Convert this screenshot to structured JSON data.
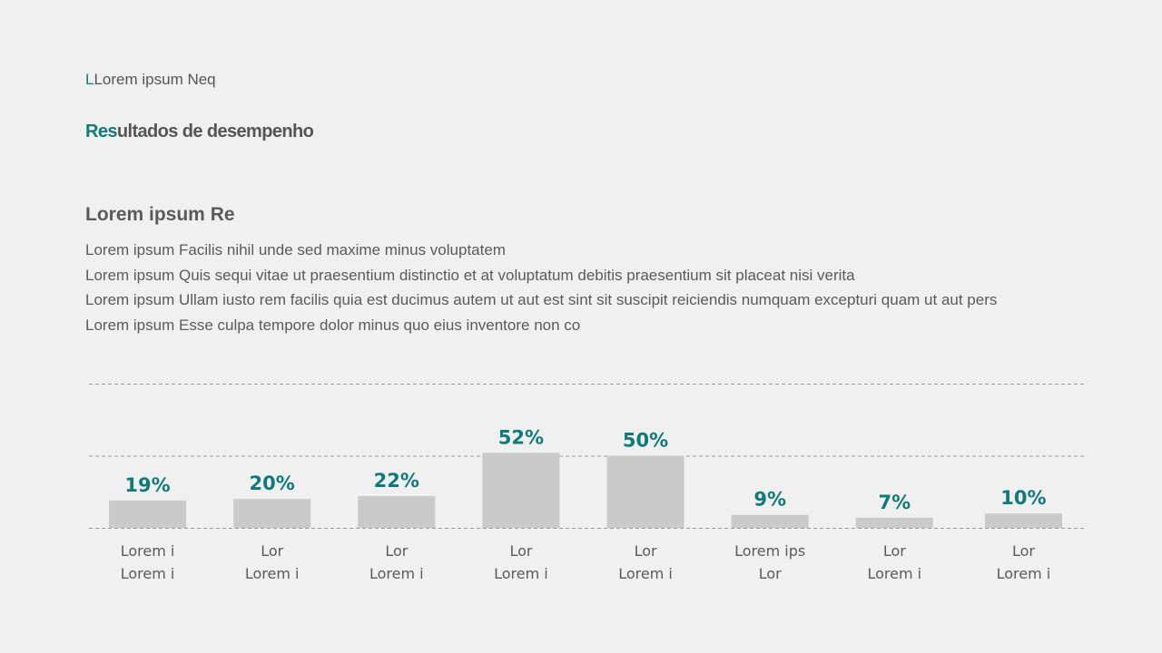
{
  "header": {
    "eyebrow_accent": "L",
    "eyebrow_rest": "Lorem ipsum Neq",
    "title_accent": "Res",
    "title_rest": "ultados de desempenho"
  },
  "content": {
    "subheading": "Lorem ipsum Re",
    "lines": [
      "Lorem ipsum Facilis nihil unde sed maxime minus voluptatem",
      "Lorem ipsum Quis sequi vitae ut praesentium distinctio et at voluptatum debitis praesentium sit placeat nisi verita",
      "Lorem ipsum Ullam iusto rem facilis quia est ducimus autem ut aut est sint sit suscipit reiciendis numquam excepturi quam ut aut pers",
      "Lorem ipsum Esse culpa tempore dolor minus quo eius inventore non co"
    ]
  },
  "colors": {
    "accent": "#0f7a7a",
    "bar": "#cacaca",
    "text": "#555555",
    "background": "#f0f0f0"
  },
  "chart_data": {
    "type": "bar",
    "categories": [
      [
        "Lorem i",
        "Lorem i"
      ],
      [
        "Lor",
        "Lorem i"
      ],
      [
        "Lor",
        "Lorem i"
      ],
      [
        "Lor",
        "Lorem i"
      ],
      [
        "Lor",
        "Lorem i"
      ],
      [
        "Lorem ips",
        "Lor"
      ],
      [
        "Lor",
        "Lorem i"
      ],
      [
        "Lor",
        "Lorem i"
      ]
    ],
    "values": [
      19,
      20,
      22,
      52,
      50,
      9,
      7,
      10
    ],
    "value_labels": [
      "19%",
      "20%",
      "22%",
      "52%",
      "50%",
      "9%",
      "7%",
      "10%"
    ],
    "ylim": [
      0,
      100
    ],
    "grid": true
  }
}
